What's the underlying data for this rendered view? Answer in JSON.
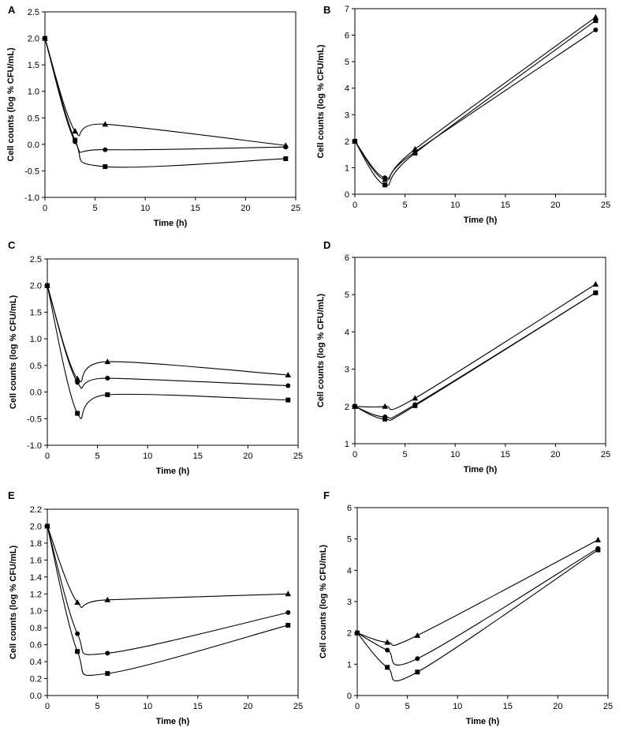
{
  "chart_data": [
    {
      "panel": "A",
      "type": "line",
      "xlabel": "Time (h)",
      "ylabel": "Cell counts (log % CFU/mL)",
      "xlim": [
        0,
        25
      ],
      "xticks": [
        0,
        5,
        10,
        15,
        20,
        25
      ],
      "ylim": [
        -1.0,
        2.5
      ],
      "yticks": [
        -1.0,
        -0.5,
        0.0,
        0.5,
        1.0,
        1.5,
        2.0,
        2.5
      ],
      "ydecimals": 1,
      "x": [
        0,
        3,
        6,
        24
      ],
      "series": [
        {
          "name": "triangle",
          "marker": "triangle",
          "values": [
            2.0,
            0.25,
            0.38,
            -0.02
          ]
        },
        {
          "name": "circle",
          "marker": "circle",
          "values": [
            2.0,
            0.05,
            -0.1,
            -0.05
          ]
        },
        {
          "name": "square",
          "marker": "square",
          "values": [
            2.0,
            0.08,
            -0.42,
            -0.27
          ]
        }
      ]
    },
    {
      "panel": "B",
      "type": "line",
      "xlabel": "Time (h)",
      "ylabel": "Cell counts (log % CFU/mL)",
      "xlim": [
        0,
        25
      ],
      "xticks": [
        0,
        5,
        10,
        15,
        20,
        25
      ],
      "ylim": [
        0,
        7
      ],
      "yticks": [
        0,
        1,
        2,
        3,
        4,
        5,
        6,
        7
      ],
      "ydecimals": 0,
      "x": [
        0,
        3,
        6,
        24
      ],
      "series": [
        {
          "name": "triangle",
          "marker": "triangle",
          "values": [
            2.0,
            0.55,
            1.7,
            6.68
          ]
        },
        {
          "name": "circle",
          "marker": "circle",
          "values": [
            2.0,
            0.62,
            1.6,
            6.2
          ]
        },
        {
          "name": "square",
          "marker": "square",
          "values": [
            2.0,
            0.35,
            1.55,
            6.55
          ]
        }
      ]
    },
    {
      "panel": "C",
      "type": "line",
      "xlabel": "Time (h)",
      "ylabel": "Cell counts (log % CFU/mL)",
      "xlim": [
        0,
        25
      ],
      "xticks": [
        0,
        5,
        10,
        15,
        20,
        25
      ],
      "ylim": [
        -1.0,
        2.5
      ],
      "yticks": [
        -1.0,
        -0.5,
        0.0,
        0.5,
        1.0,
        1.5,
        2.0,
        2.5
      ],
      "ydecimals": 1,
      "x": [
        0,
        3,
        6,
        24
      ],
      "series": [
        {
          "name": "triangle",
          "marker": "triangle",
          "values": [
            2.0,
            0.25,
            0.57,
            0.32
          ]
        },
        {
          "name": "circle",
          "marker": "circle",
          "values": [
            2.0,
            0.18,
            0.26,
            0.12
          ]
        },
        {
          "name": "square",
          "marker": "square",
          "values": [
            2.0,
            -0.4,
            -0.05,
            -0.15
          ]
        }
      ]
    },
    {
      "panel": "D",
      "type": "line",
      "xlabel": "Time (h)",
      "ylabel": "Cell counts (log % CFU/mL)",
      "xlim": [
        0,
        25
      ],
      "xticks": [
        0,
        5,
        10,
        15,
        20,
        25
      ],
      "ylim": [
        1,
        6
      ],
      "yticks": [
        1,
        2,
        3,
        4,
        5,
        6
      ],
      "ydecimals": 0,
      "x": [
        0,
        3,
        6,
        24
      ],
      "series": [
        {
          "name": "triangle",
          "marker": "triangle",
          "values": [
            2.0,
            2.0,
            2.22,
            5.28
          ]
        },
        {
          "name": "circle",
          "marker": "circle",
          "values": [
            2.0,
            1.72,
            2.05,
            5.05
          ]
        },
        {
          "name": "square",
          "marker": "square",
          "values": [
            2.0,
            1.66,
            2.02,
            5.05
          ]
        }
      ]
    },
    {
      "panel": "E",
      "type": "line",
      "xlabel": "Time (h)",
      "ylabel": "Cell counts (log % CFU/mL)",
      "xlim": [
        0,
        25
      ],
      "xticks": [
        0,
        5,
        10,
        15,
        20,
        25
      ],
      "ylim": [
        0.0,
        2.2
      ],
      "yticks": [
        0.0,
        0.2,
        0.4,
        0.6,
        0.8,
        1.0,
        1.2,
        1.4,
        1.6,
        1.8,
        2.0,
        2.2
      ],
      "ydecimals": 1,
      "x": [
        0,
        3,
        6,
        24
      ],
      "series": [
        {
          "name": "triangle",
          "marker": "triangle",
          "values": [
            2.0,
            1.1,
            1.13,
            1.2
          ]
        },
        {
          "name": "circle",
          "marker": "circle",
          "values": [
            2.0,
            0.73,
            0.5,
            0.98
          ]
        },
        {
          "name": "square",
          "marker": "square",
          "values": [
            2.0,
            0.52,
            0.26,
            0.83
          ]
        }
      ]
    },
    {
      "panel": "F",
      "type": "line",
      "xlabel": "Time (h)",
      "ylabel": "Cell counts (log % CFU/mL)",
      "xlim": [
        0,
        25
      ],
      "xticks": [
        0,
        5,
        10,
        15,
        20,
        25
      ],
      "ylim": [
        0,
        6
      ],
      "yticks": [
        0,
        1,
        2,
        3,
        4,
        5,
        6
      ],
      "ydecimals": 0,
      "x": [
        0,
        3,
        6,
        24
      ],
      "series": [
        {
          "name": "triangle",
          "marker": "triangle",
          "values": [
            2.0,
            1.7,
            1.92,
            4.97
          ]
        },
        {
          "name": "circle",
          "marker": "circle",
          "values": [
            2.0,
            1.45,
            1.18,
            4.7
          ]
        },
        {
          "name": "square",
          "marker": "square",
          "values": [
            2.0,
            0.9,
            0.75,
            4.65
          ]
        }
      ]
    }
  ]
}
